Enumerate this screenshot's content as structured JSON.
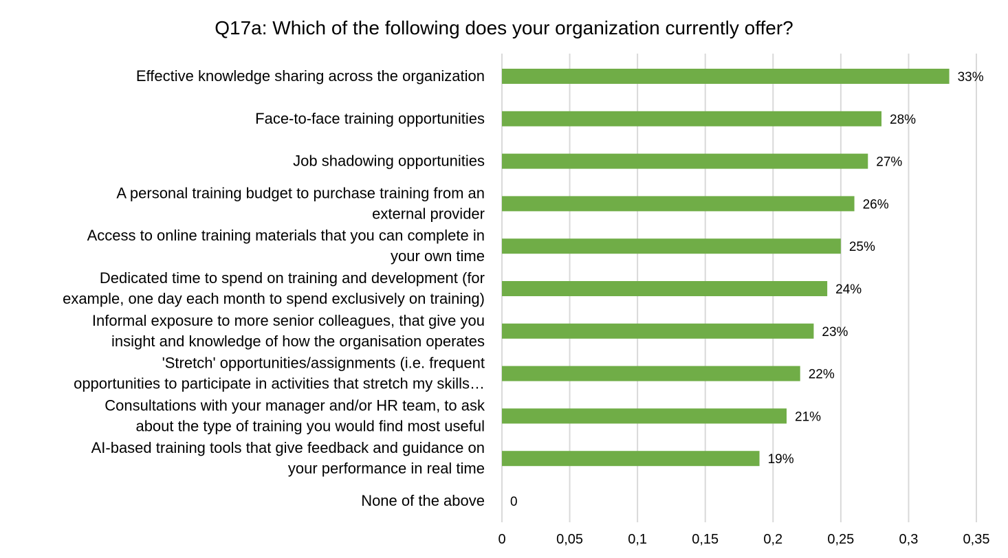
{
  "chart_data": {
    "type": "bar",
    "orientation": "horizontal",
    "title": "Q17a: Which of the following does your organization currently offer?",
    "categories": [
      [
        "Effective knowledge sharing across the organization"
      ],
      [
        "Face-to-face training opportunities"
      ],
      [
        "Job shadowing opportunities"
      ],
      [
        "A personal training budget to purchase training from an",
        "external provider"
      ],
      [
        "Access to online training materials that you can complete in",
        "your own time"
      ],
      [
        "Dedicated time to spend on training and development (for",
        "example, one day each month to spend exclusively on training)"
      ],
      [
        "Informal exposure to more senior colleagues, that give you",
        "insight and knowledge of how the organisation operates"
      ],
      [
        "'Stretch' opportunities/assignments (i.e. frequent",
        "opportunities to participate in activities that stretch my skills…"
      ],
      [
        "Consultations with your manager and/or HR team, to ask",
        "about the type of training you would find most useful"
      ],
      [
        "AI-based training tools that give feedback and guidance on",
        "your performance in real time"
      ],
      [
        "None of the above"
      ]
    ],
    "values": [
      0.33,
      0.28,
      0.27,
      0.26,
      0.25,
      0.24,
      0.23,
      0.22,
      0.21,
      0.19,
      0
    ],
    "data_labels": [
      "33%",
      "28%",
      "27%",
      "26%",
      "25%",
      "24%",
      "23%",
      "22%",
      "21%",
      "19%",
      "0"
    ],
    "xlim": [
      0,
      0.35
    ],
    "x_ticks": [
      0,
      0.05,
      0.1,
      0.15,
      0.2,
      0.25,
      0.3,
      0.35
    ],
    "x_tick_labels": [
      "0",
      "0,05",
      "0,1",
      "0,15",
      "0,2",
      "0,25",
      "0,3",
      "0,35"
    ],
    "xlabel": "",
    "ylabel": "",
    "grid": true,
    "legend": "none",
    "bar_color": "#70ad47",
    "grid_color": "#d9d9d9"
  }
}
